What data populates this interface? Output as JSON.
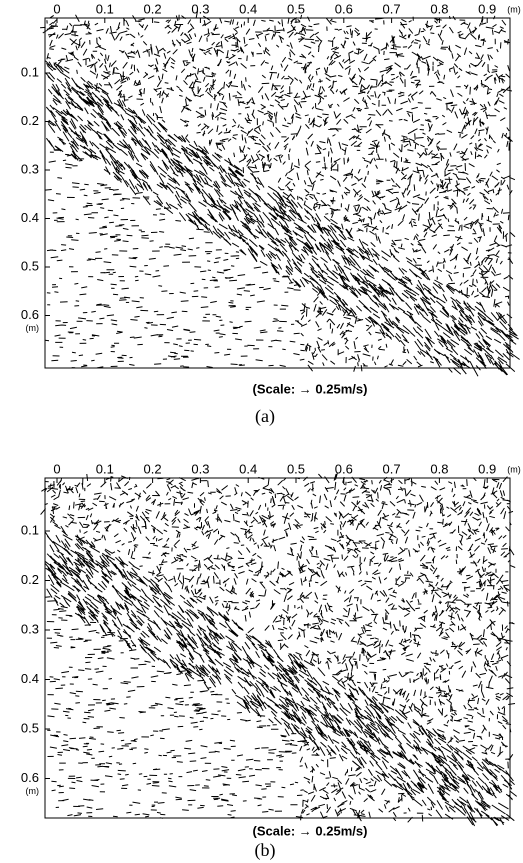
{
  "panels": [
    {
      "x_ticks": [
        0,
        0.1,
        0.2,
        0.3,
        0.4,
        0.5,
        0.6,
        0.7,
        0.8,
        0.9
      ],
      "x_unit": "(m)",
      "y_ticks": [
        0.1,
        0.2,
        0.3,
        0.4,
        0.5,
        0.6
      ],
      "y_unit": "(m)",
      "scale": "(Scale:  →  0.25m/s)",
      "caption": "(a)"
    },
    {
      "x_ticks": [
        0,
        0.1,
        0.2,
        0.3,
        0.4,
        0.5,
        0.6,
        0.7,
        0.8,
        0.9
      ],
      "x_unit": "(m)",
      "y_ticks": [
        0.1,
        0.2,
        0.3,
        0.4,
        0.5,
        0.6
      ],
      "y_unit": "(m)",
      "scale": "(Scale:  →  0.25m/s)",
      "caption": "(b)"
    }
  ]
}
